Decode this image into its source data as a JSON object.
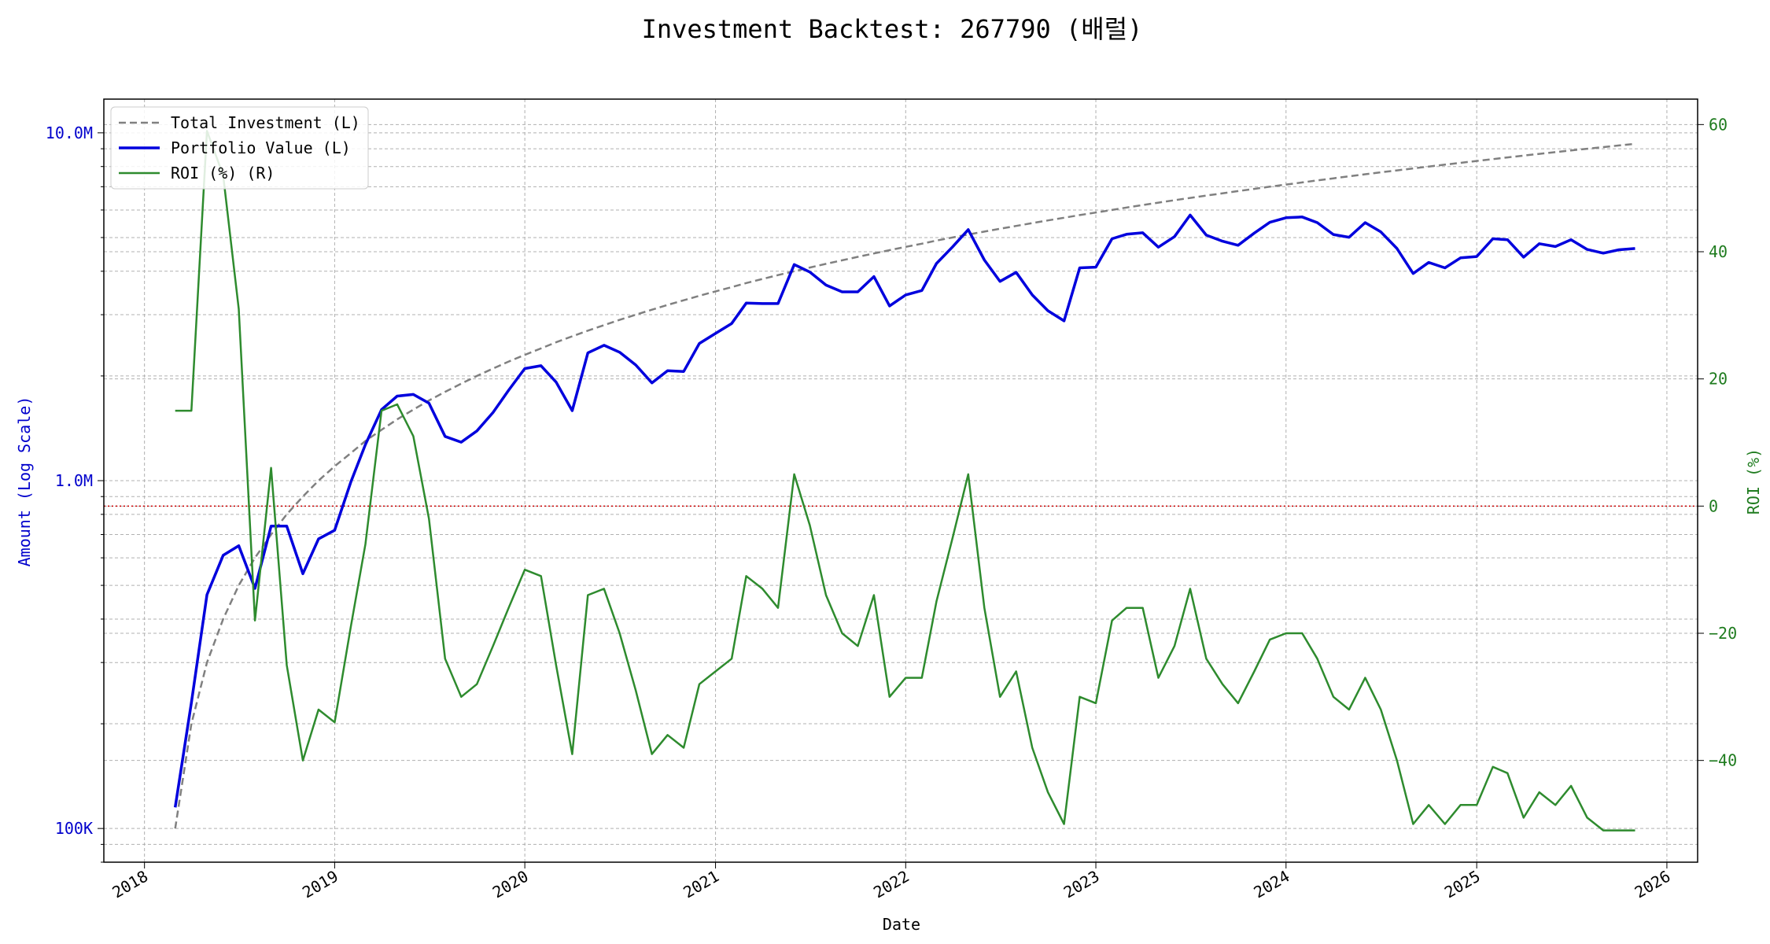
{
  "chart_data": {
    "type": "line",
    "title": "Investment Backtest: 267790 (배럴)",
    "xlabel": "Date",
    "ylabel_left": "Amount (Log Scale)",
    "ylabel_right": "ROI (%)",
    "y_left_scale": "log",
    "y_left_lim": [
      80000,
      12500000
    ],
    "y_right_lim": [
      -56,
      64
    ],
    "x_lim": [
      "2017-10-15",
      "2026-03-01"
    ],
    "x_ticks": [
      "2018",
      "2019",
      "2020",
      "2021",
      "2022",
      "2023",
      "2024",
      "2025",
      "2026"
    ],
    "y_left_ticks": [
      {
        "value": 100000,
        "label": "100K"
      },
      {
        "value": 1000000,
        "label": "1.0M"
      },
      {
        "value": 10000000,
        "label": "10.0M"
      }
    ],
    "y_right_ticks": [
      {
        "value": -40,
        "label": "−40"
      },
      {
        "value": -20,
        "label": "−20"
      },
      {
        "value": 0,
        "label": "0"
      },
      {
        "value": 20,
        "label": "20"
      },
      {
        "value": 40,
        "label": "40"
      },
      {
        "value": 60,
        "label": "60"
      }
    ],
    "grid": true,
    "legend_position": "top-left",
    "reference_line": {
      "axis": "right",
      "value": 0,
      "color": "#cc0000",
      "style": "dotted"
    },
    "dates": [
      "2018-03",
      "2018-04",
      "2018-05",
      "2018-06",
      "2018-07",
      "2018-08",
      "2018-09",
      "2018-10",
      "2018-11",
      "2018-12",
      "2019-01",
      "2019-02",
      "2019-03",
      "2019-04",
      "2019-05",
      "2019-06",
      "2019-07",
      "2019-08",
      "2019-09",
      "2019-10",
      "2019-11",
      "2019-12",
      "2020-01",
      "2020-02",
      "2020-03",
      "2020-04",
      "2020-05",
      "2020-06",
      "2020-07",
      "2020-08",
      "2020-09",
      "2020-10",
      "2020-11",
      "2020-12",
      "2021-01",
      "2021-02",
      "2021-03",
      "2021-04",
      "2021-05",
      "2021-06",
      "2021-07",
      "2021-08",
      "2021-09",
      "2021-10",
      "2021-11",
      "2021-12",
      "2022-01",
      "2022-02",
      "2022-03",
      "2022-04",
      "2022-05",
      "2022-06",
      "2022-07",
      "2022-08",
      "2022-09",
      "2022-10",
      "2022-11",
      "2022-12",
      "2023-01",
      "2023-02",
      "2023-03",
      "2023-04",
      "2023-05",
      "2023-06",
      "2023-07",
      "2023-08",
      "2023-09",
      "2023-10",
      "2023-11",
      "2023-12",
      "2024-01",
      "2024-02",
      "2024-03",
      "2024-04",
      "2024-05",
      "2024-06",
      "2024-07",
      "2024-08",
      "2024-09",
      "2024-10",
      "2024-11",
      "2024-12",
      "2025-01",
      "2025-02",
      "2025-03",
      "2025-04",
      "2025-05",
      "2025-06",
      "2025-07",
      "2025-08",
      "2025-09",
      "2025-10",
      "2025-11"
    ],
    "series": [
      {
        "name": "Total Investment (L)",
        "axis": "left",
        "color": "#808080",
        "dash": "dashed",
        "values": [
          100000,
          200000,
          300000,
          400000,
          500000,
          600000,
          700000,
          800000,
          900000,
          1000000,
          1100000,
          1200000,
          1300000,
          1400000,
          1500000,
          1600000,
          1700000,
          1800000,
          1900000,
          2000000,
          2100000,
          2200000,
          2300000,
          2400000,
          2500000,
          2600000,
          2700000,
          2800000,
          2900000,
          3000000,
          3100000,
          3200000,
          3300000,
          3400000,
          3500000,
          3600000,
          3700000,
          3800000,
          3900000,
          4000000,
          4100000,
          4200000,
          4300000,
          4400000,
          4500000,
          4600000,
          4700000,
          4800000,
          4900000,
          5000000,
          5100000,
          5200000,
          5300000,
          5400000,
          5500000,
          5600000,
          5700000,
          5800000,
          5900000,
          6000000,
          6100000,
          6200000,
          6300000,
          6400000,
          6500000,
          6600000,
          6700000,
          6800000,
          6900000,
          7000000,
          7100000,
          7200000,
          7300000,
          7400000,
          7500000,
          7600000,
          7700000,
          7800000,
          7900000,
          8000000,
          8100000,
          8200000,
          8300000,
          8400000,
          8500000,
          8600000,
          8700000,
          8800000,
          8900000,
          9000000,
          9100000,
          9200000,
          9300000
        ]
      },
      {
        "name": "Portfolio Value (L)",
        "axis": "left",
        "color": "#0000dd",
        "dash": "solid",
        "values": [
          115000,
          230000,
          470000,
          610000,
          650000,
          490000,
          740000,
          740000,
          540000,
          680000,
          720000,
          990000,
          1270000,
          1600000,
          1750000,
          1770000,
          1670000,
          1340000,
          1290000,
          1390000,
          1570000,
          1820000,
          2100000,
          2140000,
          1920000,
          1590000,
          2330000,
          2450000,
          2340000,
          2150000,
          1910000,
          2070000,
          2060000,
          2480000,
          2650000,
          2830000,
          3240000,
          3230000,
          3230000,
          4180000,
          3980000,
          3650000,
          3490000,
          3490000,
          3860000,
          3180000,
          3420000,
          3520000,
          4210000,
          4700000,
          5270000,
          4310000,
          3740000,
          3970000,
          3420000,
          3080000,
          2880000,
          4090000,
          4110000,
          4960000,
          5110000,
          5160000,
          4690000,
          5030000,
          5800000,
          5080000,
          4880000,
          4750000,
          5150000,
          5530000,
          5700000,
          5730000,
          5520000,
          5100000,
          5010000,
          5520000,
          5190000,
          4650000,
          3940000,
          4240000,
          4090000,
          4370000,
          4410000,
          4960000,
          4930000,
          4390000,
          4800000,
          4710000,
          4930000,
          4620000,
          4510000,
          4610000,
          4650000
        ]
      },
      {
        "name": "ROI (%) (R)",
        "axis": "right",
        "color": "#2e8b2e",
        "dash": "solid",
        "values": [
          15,
          15,
          59,
          52,
          31,
          -18,
          6,
          -25,
          -40,
          -32,
          -34,
          -19,
          -6,
          15,
          16,
          11,
          -2,
          -24,
          -30,
          -28,
          -22,
          -16,
          -10,
          -11,
          -25,
          -39,
          -14,
          -13,
          -20,
          -29,
          -39,
          -36,
          -38,
          -28,
          -26,
          -24,
          -11,
          -13,
          -16,
          5,
          -3,
          -14,
          -20,
          -22,
          -14,
          -30,
          -27,
          -27,
          -15,
          -5,
          5,
          -16,
          -30,
          -26,
          -38,
          -45,
          -50,
          -30,
          -31,
          -18,
          -16,
          -16,
          -27,
          -22,
          -13,
          -24,
          -28,
          -31,
          -26,
          -21,
          -20,
          -20,
          -24,
          -30,
          -32,
          -27,
          -32,
          -40,
          -50,
          -47,
          -50,
          -47,
          -47,
          -41,
          -42,
          -49,
          -45,
          -47,
          -44,
          -49,
          -51,
          -51,
          -51
        ]
      }
    ]
  }
}
